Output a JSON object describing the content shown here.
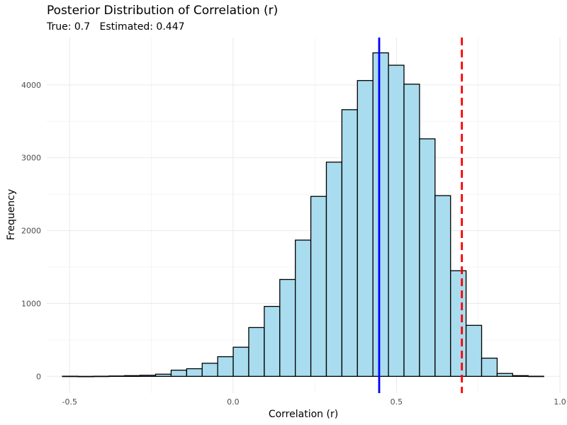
{
  "chart_data": {
    "type": "bar",
    "title": "Posterior Distribution of Correlation (r)",
    "subtitle": {
      "true_label": "True: 0.7",
      "estimated_label": "Estimated: 0.447"
    },
    "xlabel": "Correlation (r)",
    "ylabel": "Frequency",
    "xlim": [
      -0.57,
      1.0
    ],
    "ylim": [
      -230,
      4650
    ],
    "x_ticks": [
      -0.5,
      0.0,
      0.5,
      1.0
    ],
    "x_tick_labels": [
      "-0.5",
      "0.0",
      "0.5",
      "1.0"
    ],
    "y_ticks": [
      0,
      1000,
      2000,
      3000,
      4000
    ],
    "y_tick_labels": [
      "0",
      "1000",
      "2000",
      "3000",
      "4000"
    ],
    "bin_width": 0.0475,
    "bin_centers": [
      -0.4983,
      -0.4508,
      -0.4033,
      -0.3558,
      -0.3083,
      -0.2608,
      -0.2133,
      -0.1658,
      -0.1183,
      -0.0708,
      -0.0233,
      0.0242,
      0.0717,
      0.1192,
      0.1667,
      0.2142,
      0.2617,
      0.3092,
      0.3567,
      0.4042,
      0.4517,
      0.4992,
      0.5467,
      0.5942,
      0.6417,
      0.6892,
      0.7367,
      0.7842,
      0.8317,
      0.8792,
      0.9267
    ],
    "values": [
      2,
      0,
      2,
      5,
      10,
      15,
      30,
      85,
      105,
      180,
      270,
      400,
      670,
      960,
      1330,
      1870,
      2470,
      2940,
      3660,
      4060,
      4440,
      4270,
      4010,
      3260,
      2480,
      1450,
      700,
      250,
      40,
      10,
      2
    ],
    "reference_lines": [
      {
        "label": "Estimated",
        "x": 0.447,
        "color": "#0000ff",
        "style": "solid"
      },
      {
        "label": "True",
        "x": 0.7,
        "color": "#ff0000",
        "style": "dashed"
      }
    ],
    "bar_fill": "#a9dcee",
    "bar_stroke": "#000000",
    "grid": true,
    "legend": "none"
  }
}
